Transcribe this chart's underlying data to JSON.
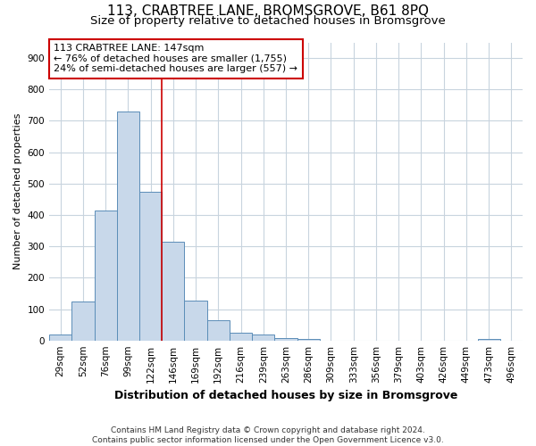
{
  "title1": "113, CRABTREE LANE, BROMSGROVE, B61 8PQ",
  "title2": "Size of property relative to detached houses in Bromsgrove",
  "xlabel": "Distribution of detached houses by size in Bromsgrove",
  "ylabel": "Number of detached properties",
  "footnote": "Contains HM Land Registry data © Crown copyright and database right 2024.\nContains public sector information licensed under the Open Government Licence v3.0.",
  "bar_labels": [
    "29sqm",
    "52sqm",
    "76sqm",
    "99sqm",
    "122sqm",
    "146sqm",
    "169sqm",
    "192sqm",
    "216sqm",
    "239sqm",
    "263sqm",
    "286sqm",
    "309sqm",
    "333sqm",
    "356sqm",
    "379sqm",
    "403sqm",
    "426sqm",
    "449sqm",
    "473sqm",
    "496sqm"
  ],
  "bar_values": [
    18,
    125,
    415,
    730,
    475,
    315,
    128,
    65,
    25,
    18,
    8,
    5,
    0,
    0,
    0,
    0,
    0,
    0,
    0,
    5,
    0
  ],
  "bar_color": "#c8d8ea",
  "bar_edge_color": "#5b8db8",
  "property_line_index": 5,
  "property_sqm": "147sqm",
  "pct_smaller": "76%",
  "n_smaller": "1,755",
  "pct_larger_semi": "24%",
  "n_larger_semi": "557",
  "annotation_box_color": "#cc0000",
  "ylim": [
    0,
    950
  ],
  "yticks": [
    0,
    100,
    200,
    300,
    400,
    500,
    600,
    700,
    800,
    900
  ],
  "grid_color": "#c8d4de",
  "title1_fontsize": 11,
  "title2_fontsize": 9.5,
  "xlabel_fontsize": 9,
  "ylabel_fontsize": 8,
  "tick_fontsize": 7.5,
  "annot_fontsize": 8,
  "footnote_fontsize": 6.5
}
